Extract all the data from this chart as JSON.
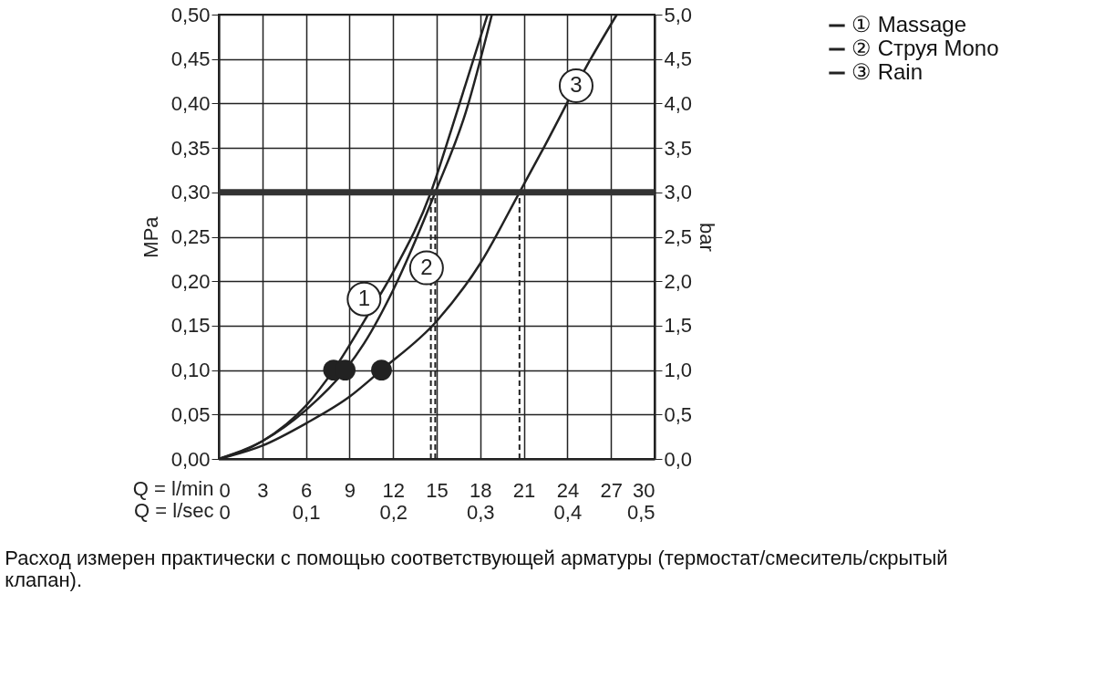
{
  "chart_data": {
    "type": "line",
    "xlabel": "Q = l/min",
    "x2label": "Q = l/sec",
    "ylabel": "MPa",
    "y2label": "bar",
    "xlim": [
      0,
      30
    ],
    "xticks": [
      0,
      3,
      6,
      9,
      12,
      15,
      18,
      21,
      24,
      27,
      30
    ],
    "x2lim": [
      0,
      0.5
    ],
    "x2ticks": [
      {
        "value": 0,
        "label": "0"
      },
      {
        "value": 0.1,
        "label": "0,1"
      },
      {
        "value": 0.2,
        "label": "0,2"
      },
      {
        "value": 0.3,
        "label": "0,3"
      },
      {
        "value": 0.4,
        "label": "0,4"
      },
      {
        "value": 0.5,
        "label": "0,5"
      }
    ],
    "ylim": [
      0,
      0.5
    ],
    "yticks": [
      {
        "value": 0,
        "label": "0,00"
      },
      {
        "value": 0.05,
        "label": "0,05"
      },
      {
        "value": 0.1,
        "label": "0,10"
      },
      {
        "value": 0.15,
        "label": "0,15"
      },
      {
        "value": 0.2,
        "label": "0,20"
      },
      {
        "value": 0.25,
        "label": "0,25"
      },
      {
        "value": 0.3,
        "label": "0,30"
      },
      {
        "value": 0.35,
        "label": "0,35"
      },
      {
        "value": 0.4,
        "label": "0,40"
      },
      {
        "value": 0.45,
        "label": "0,45"
      },
      {
        "value": 0.5,
        "label": "0,50"
      }
    ],
    "y2lim": [
      0,
      5
    ],
    "y2ticks": [
      {
        "value": 0,
        "label": "0,0"
      },
      {
        "value": 0.5,
        "label": "0,5"
      },
      {
        "value": 1,
        "label": "1,0"
      },
      {
        "value": 1.5,
        "label": "1,5"
      },
      {
        "value": 2,
        "label": "2,0"
      },
      {
        "value": 2.5,
        "label": "2,5"
      },
      {
        "value": 3,
        "label": "3,0"
      },
      {
        "value": 3.5,
        "label": "3,5"
      },
      {
        "value": 4,
        "label": "4,0"
      },
      {
        "value": 4.5,
        "label": "4,5"
      },
      {
        "value": 5,
        "label": "5,0"
      }
    ],
    "grid": true,
    "legend": "top right",
    "marker": "none",
    "line_style": "solid",
    "series": [
      {
        "name": "① Massage",
        "color": "#222222",
        "x": [
          0,
          3,
          6,
          7.9,
          10,
          12,
          14.6,
          16,
          18.5
        ],
        "values": [
          0,
          0.02,
          0.06,
          0.1,
          0.155,
          0.21,
          0.3,
          0.37,
          0.5
        ]
      },
      {
        "name": "② Струя Mono",
        "color": "#222222",
        "x": [
          0,
          3,
          6,
          8.7,
          10,
          12,
          14.9,
          17,
          18.8
        ],
        "values": [
          0,
          0.02,
          0.055,
          0.1,
          0.13,
          0.19,
          0.3,
          0.39,
          0.5
        ]
      },
      {
        "name": "③ Rain",
        "color": "#222222",
        "x": [
          0,
          3,
          6,
          9,
          11.2,
          15,
          18,
          20.7,
          22.2,
          25.6,
          27.4
        ],
        "values": [
          0,
          0.015,
          0.04,
          0.07,
          0.1,
          0.155,
          0.22,
          0.3,
          0.345,
          0.45,
          0.5
        ]
      },
      {
        "type": "scatter",
        "marker": "circle",
        "color": "#222222",
        "x": [
          7.9,
          8.7,
          11.2
        ],
        "values": [
          0.1,
          0.1,
          0.1
        ]
      },
      {
        "line_style": "dashed",
        "color": "#222222",
        "x": [
          14.6,
          14.6
        ],
        "values": [
          0,
          0.3
        ]
      },
      {
        "line_style": "dashed",
        "color": "#222222",
        "x": [
          14.9,
          14.9
        ],
        "values": [
          0,
          0.3
        ]
      },
      {
        "line_style": "dashed",
        "color": "#222222",
        "x": [
          20.7,
          20.7
        ],
        "values": [
          0,
          0.3
        ]
      }
    ],
    "ref_lines": [
      {
        "axis": "y",
        "value": 0.3,
        "color": "#333333"
      }
    ],
    "annotations": [
      {
        "text": "1",
        "x": 10,
        "y": 0.18
      },
      {
        "text": "2",
        "x": 14.3,
        "y": 0.215
      },
      {
        "text": "3",
        "x": 24.6,
        "y": 0.42
      },
      "Расход измерен практически с помощью соответствующей арматуры (термостат/смеситель/скрытый клапан)."
    ]
  }
}
